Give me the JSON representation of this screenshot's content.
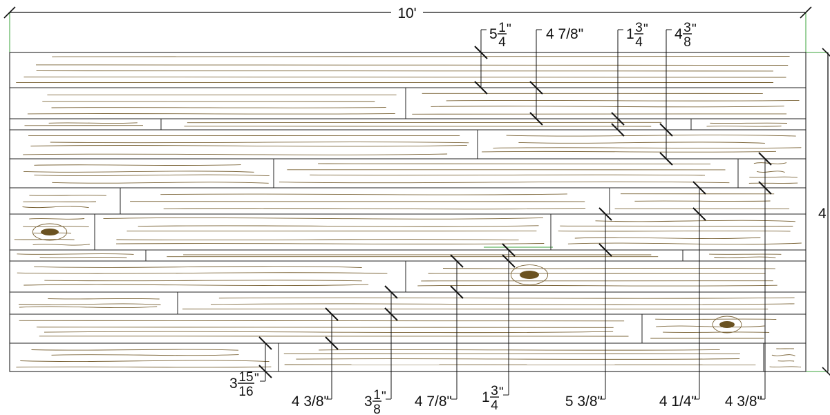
{
  "top_dimension": "10'",
  "side_dimension": "4",
  "colors": {
    "outline": "#222222",
    "grain": "#7a6336",
    "knot": "#6b5322",
    "guide": "#3aa33a",
    "background": "#ffffff"
  },
  "top_labels": [
    {
      "type": "fraction",
      "whole": "5",
      "num": "1",
      "den": "4"
    },
    {
      "type": "plain",
      "text": "4 7/8\""
    },
    {
      "type": "fraction",
      "whole": "1",
      "num": "3",
      "den": "4"
    },
    {
      "type": "fraction",
      "whole": "4",
      "num": "3",
      "den": "8"
    }
  ],
  "bottom_labels": [
    {
      "type": "fraction",
      "whole": "3",
      "num": "15",
      "den": "16"
    },
    {
      "type": "plain",
      "text": "4 3/8\""
    },
    {
      "type": "fraction",
      "whole": "3",
      "num": "1",
      "den": "8"
    },
    {
      "type": "plain",
      "text": "4 7/8\""
    },
    {
      "type": "fraction",
      "whole": "1",
      "num": "3",
      "den": "4"
    },
    {
      "type": "plain",
      "text": "5 3/8\""
    },
    {
      "type": "plain",
      "text": "4 1/4\""
    },
    {
      "type": "plain",
      "text": "4 3/8\""
    }
  ]
}
